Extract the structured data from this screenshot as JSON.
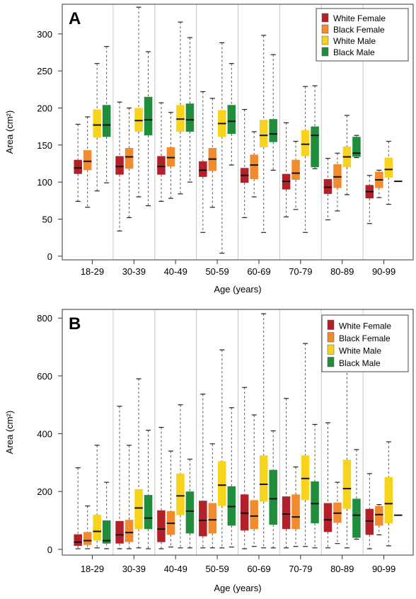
{
  "colors": {
    "White Female": "#b4202a",
    "Black Female": "#f28a2e",
    "White Male": "#f7d31b",
    "Black Male": "#1f8d3c",
    "frame": "#555555",
    "whisker": "#555555",
    "divider": "#c8c8c8"
  },
  "chart_data": [
    {
      "type": "box",
      "panel_label": "A",
      "ylabel": "Area (cm²)",
      "xlabel": "Age (years)",
      "ylim": [
        -5,
        340
      ],
      "yticks": [
        0,
        50,
        100,
        150,
        200,
        250,
        300
      ],
      "legend_position": "top-right",
      "categories": [
        "18-29",
        "30-39",
        "40-49",
        "50-59",
        "60-69",
        "70-79",
        "80-89",
        "90-99"
      ],
      "series": [
        {
          "name": "White Female",
          "boxes": [
            {
              "min": 74,
              "q1": 111,
              "median": 119,
              "q3": 130,
              "max": 178
            },
            {
              "min": 34,
              "q1": 110,
              "median": 121,
              "q3": 135,
              "max": 208
            },
            {
              "min": 74,
              "q1": 110,
              "median": 121,
              "q3": 135,
              "max": 207
            },
            {
              "min": 32,
              "q1": 107,
              "median": 116,
              "q3": 128,
              "max": 222
            },
            {
              "min": 52,
              "q1": 99,
              "median": 109,
              "q3": 119,
              "max": 198
            },
            {
              "min": 53,
              "q1": 90,
              "median": 101,
              "q3": 111,
              "max": 180
            },
            {
              "min": 49,
              "q1": 84,
              "median": 93,
              "q3": 104,
              "max": 132
            },
            {
              "min": 44,
              "q1": 78,
              "median": 87,
              "q3": 96,
              "max": 109
            }
          ]
        },
        {
          "name": "Black Female",
          "boxes": [
            {
              "min": 66,
              "q1": 116,
              "median": 128,
              "q3": 143,
              "max": 188
            },
            {
              "min": 52,
              "q1": 118,
              "median": 134,
              "q3": 146,
              "max": 200
            },
            {
              "min": 78,
              "q1": 121,
              "median": 133,
              "q3": 147,
              "max": 194
            },
            {
              "min": 66,
              "q1": 115,
              "median": 131,
              "q3": 146,
              "max": 213
            },
            {
              "min": 80,
              "q1": 104,
              "median": 123,
              "q3": 137,
              "max": 168
            },
            {
              "min": 63,
              "q1": 103,
              "median": 112,
              "q3": 130,
              "max": 155
            },
            {
              "min": 61,
              "q1": 92,
              "median": 107,
              "q3": 124,
              "max": 139
            },
            {
              "min": 79,
              "q1": 92,
              "median": 103,
              "q3": 114,
              "max": 116
            }
          ]
        },
        {
          "name": "White Male",
          "boxes": [
            {
              "min": 88,
              "q1": 160,
              "median": 177,
              "q3": 198,
              "max": 260
            },
            {
              "min": 80,
              "q1": 168,
              "median": 183,
              "q3": 200,
              "max": 336
            },
            {
              "min": 84,
              "q1": 168,
              "median": 185,
              "q3": 204,
              "max": 316
            },
            {
              "min": 4,
              "q1": 161,
              "median": 179,
              "q3": 197,
              "max": 288
            },
            {
              "min": 32,
              "q1": 147,
              "median": 163,
              "q3": 184,
              "max": 298
            },
            {
              "min": 32,
              "q1": 135,
              "median": 151,
              "q3": 170,
              "max": 229
            },
            {
              "min": 83,
              "q1": 120,
              "median": 134,
              "q3": 148,
              "max": 190
            },
            {
              "min": 70,
              "q1": 106,
              "median": 117,
              "q3": 133,
              "max": 155
            }
          ]
        },
        {
          "name": "Black Male",
          "boxes": [
            {
              "min": 99,
              "q1": 161,
              "median": 177,
              "q3": 204,
              "max": 283
            },
            {
              "min": 68,
              "q1": 163,
              "median": 184,
              "q3": 215,
              "max": 276
            },
            {
              "min": 100,
              "q1": 168,
              "median": 184,
              "q3": 206,
              "max": 295
            },
            {
              "min": 123,
              "q1": 165,
              "median": 182,
              "q3": 204,
              "max": 260
            },
            {
              "min": 116,
              "q1": 154,
              "median": 165,
              "q3": 185,
              "max": 272
            },
            {
              "min": 118,
              "q1": 120,
              "median": 163,
              "q3": 175,
              "max": 230
            },
            {
              "min": 133,
              "q1": 134,
              "median": 139,
              "q3": 161,
              "max": 163
            },
            {
              "min": 101,
              "q1": 101,
              "median": 101,
              "q3": 101,
              "max": 101
            }
          ]
        }
      ]
    },
    {
      "type": "box",
      "panel_label": "B",
      "ylabel": "Area (cm²)",
      "xlabel": "Age (years)",
      "ylim": [
        -20,
        830
      ],
      "yticks": [
        0,
        200,
        400,
        600,
        800
      ],
      "legend_position": "top-right",
      "categories": [
        "18-29",
        "30-39",
        "40-49",
        "50-59",
        "60-69",
        "70-79",
        "80-89",
        "90-99"
      ],
      "series": [
        {
          "name": "White Female",
          "boxes": [
            {
              "min": 2,
              "q1": 12,
              "median": 25,
              "q3": 52,
              "max": 282
            },
            {
              "min": 2,
              "q1": 20,
              "median": 50,
              "q3": 98,
              "max": 495
            },
            {
              "min": 2,
              "q1": 25,
              "median": 70,
              "q3": 135,
              "max": 422
            },
            {
              "min": 5,
              "q1": 45,
              "median": 100,
              "q3": 168,
              "max": 537
            },
            {
              "min": 2,
              "q1": 65,
              "median": 125,
              "q3": 190,
              "max": 560
            },
            {
              "min": 5,
              "q1": 70,
              "median": 122,
              "q3": 183,
              "max": 522
            },
            {
              "min": 5,
              "q1": 60,
              "median": 102,
              "q3": 160,
              "max": 438
            },
            {
              "min": 2,
              "q1": 50,
              "median": 98,
              "q3": 140,
              "max": 262
            }
          ]
        },
        {
          "name": "Black Female",
          "boxes": [
            {
              "min": 2,
              "q1": 15,
              "median": 30,
              "q3": 60,
              "max": 150
            },
            {
              "min": 2,
              "q1": 25,
              "median": 58,
              "q3": 102,
              "max": 360
            },
            {
              "min": 8,
              "q1": 50,
              "median": 90,
              "q3": 132,
              "max": 340
            },
            {
              "min": 5,
              "q1": 55,
              "median": 102,
              "q3": 160,
              "max": 365
            },
            {
              "min": 10,
              "q1": 70,
              "median": 115,
              "q3": 170,
              "max": 465
            },
            {
              "min": 10,
              "q1": 70,
              "median": 112,
              "q3": 190,
              "max": 285
            },
            {
              "min": 20,
              "q1": 92,
              "median": 125,
              "q3": 162,
              "max": 232
            },
            {
              "min": 50,
              "q1": 82,
              "median": 120,
              "q3": 150,
              "max": 155
            }
          ]
        },
        {
          "name": "White Male",
          "boxes": [
            {
              "min": 5,
              "q1": 30,
              "median": 62,
              "q3": 120,
              "max": 360
            },
            {
              "min": 5,
              "q1": 70,
              "median": 143,
              "q3": 208,
              "max": 590
            },
            {
              "min": 5,
              "q1": 118,
              "median": 185,
              "q3": 262,
              "max": 500
            },
            {
              "min": 5,
              "q1": 150,
              "median": 222,
              "q3": 305,
              "max": 690
            },
            {
              "min": 5,
              "q1": 165,
              "median": 225,
              "q3": 325,
              "max": 815
            },
            {
              "min": 10,
              "q1": 170,
              "median": 245,
              "q3": 325,
              "max": 712
            },
            {
              "min": 5,
              "q1": 140,
              "median": 210,
              "q3": 310,
              "max": 640
            },
            {
              "min": 12,
              "q1": 90,
              "median": 158,
              "q3": 250,
              "max": 372
            }
          ]
        },
        {
          "name": "Black Male",
          "boxes": [
            {
              "min": 2,
              "q1": 20,
              "median": 30,
              "q3": 100,
              "max": 232
            },
            {
              "min": 2,
              "q1": 70,
              "median": 108,
              "q3": 188,
              "max": 412
            },
            {
              "min": 5,
              "q1": 55,
              "median": 132,
              "q3": 200,
              "max": 312
            },
            {
              "min": 8,
              "q1": 82,
              "median": 148,
              "q3": 218,
              "max": 490
            },
            {
              "min": 5,
              "q1": 85,
              "median": 175,
              "q3": 275,
              "max": 410
            },
            {
              "min": 5,
              "q1": 90,
              "median": 158,
              "q3": 235,
              "max": 432
            },
            {
              "min": 35,
              "q1": 40,
              "median": 118,
              "q3": 175,
              "max": 345
            },
            {
              "min": 118,
              "q1": 118,
              "median": 118,
              "q3": 118,
              "max": 118
            }
          ]
        }
      ]
    }
  ]
}
